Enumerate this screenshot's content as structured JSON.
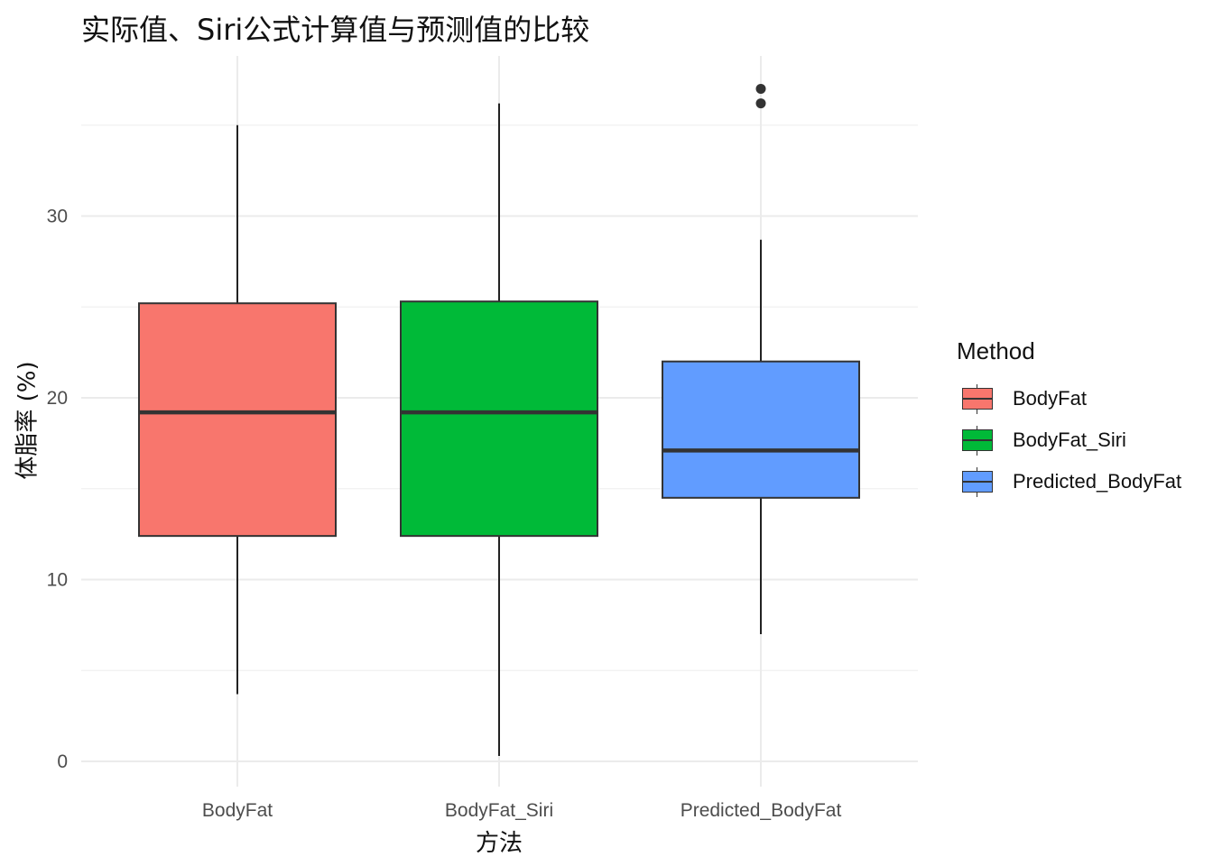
{
  "title": "实际值、Siri公式计算值与预测值的比较",
  "chart_data": {
    "type": "box",
    "title": "实际值、Siri公式计算值与预测值的比较",
    "xlabel": "方法",
    "ylabel": "体脂率 (%)",
    "categories": [
      "BodyFat",
      "BodyFat_Siri",
      "Predicted_BodyFat"
    ],
    "y_ticks": [
      "0",
      "10",
      "20",
      "30"
    ],
    "ylim": [
      -1.4,
      38.5
    ],
    "grid": true,
    "legend": {
      "title": "Method",
      "position": "right",
      "entries": [
        "BodyFat",
        "BodyFat_Siri",
        "Predicted_BodyFat"
      ]
    },
    "series": [
      {
        "category": "BodyFat",
        "color": "#F8766D",
        "whisker_low": 3.7,
        "q1": 12.4,
        "median": 19.2,
        "q3": 25.2,
        "whisker_high": 35.0,
        "outliers": []
      },
      {
        "category": "BodyFat_Siri",
        "color": "#00BA38",
        "whisker_low": 0.3,
        "q1": 12.4,
        "median": 19.2,
        "q3": 25.3,
        "whisker_high": 36.2,
        "outliers": []
      },
      {
        "category": "Predicted_BodyFat",
        "color": "#619CFF",
        "whisker_low": 7.0,
        "q1": 14.5,
        "median": 17.1,
        "q3": 22.0,
        "whisker_high": 28.7,
        "outliers": [
          36.2,
          37.0
        ]
      }
    ]
  }
}
